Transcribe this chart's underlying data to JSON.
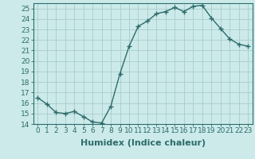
{
  "x": [
    0,
    1,
    2,
    3,
    4,
    5,
    6,
    7,
    8,
    9,
    10,
    11,
    12,
    13,
    14,
    15,
    16,
    17,
    18,
    19,
    20,
    21,
    22,
    23
  ],
  "y": [
    16.5,
    15.9,
    15.1,
    15.0,
    15.2,
    14.7,
    14.2,
    14.1,
    15.7,
    18.8,
    21.4,
    23.3,
    23.8,
    24.5,
    24.7,
    25.1,
    24.7,
    25.2,
    25.3,
    24.1,
    23.1,
    22.1,
    21.6,
    21.4
  ],
  "xlabel": "Humidex (Indice chaleur)",
  "ylim": [
    14,
    25.5
  ],
  "xlim": [
    -0.5,
    23.5
  ],
  "yticks": [
    14,
    15,
    16,
    17,
    18,
    19,
    20,
    21,
    22,
    23,
    24,
    25
  ],
  "xticks": [
    0,
    1,
    2,
    3,
    4,
    5,
    6,
    7,
    8,
    9,
    10,
    11,
    12,
    13,
    14,
    15,
    16,
    17,
    18,
    19,
    20,
    21,
    22,
    23
  ],
  "xtick_labels": [
    "0",
    "1",
    "2",
    "3",
    "4",
    "5",
    "6",
    "7",
    "8",
    "9",
    "10",
    "11",
    "12",
    "13",
    "14",
    "15",
    "16",
    "17",
    "18",
    "19",
    "20",
    "21",
    "22",
    "23"
  ],
  "line_color": "#2e6b6b",
  "marker": "+",
  "marker_size": 4,
  "line_width": 1.0,
  "bg_color": "#cceaea",
  "grid_color": "#aacccc",
  "xlabel_fontsize": 8,
  "tick_fontsize": 6.5
}
